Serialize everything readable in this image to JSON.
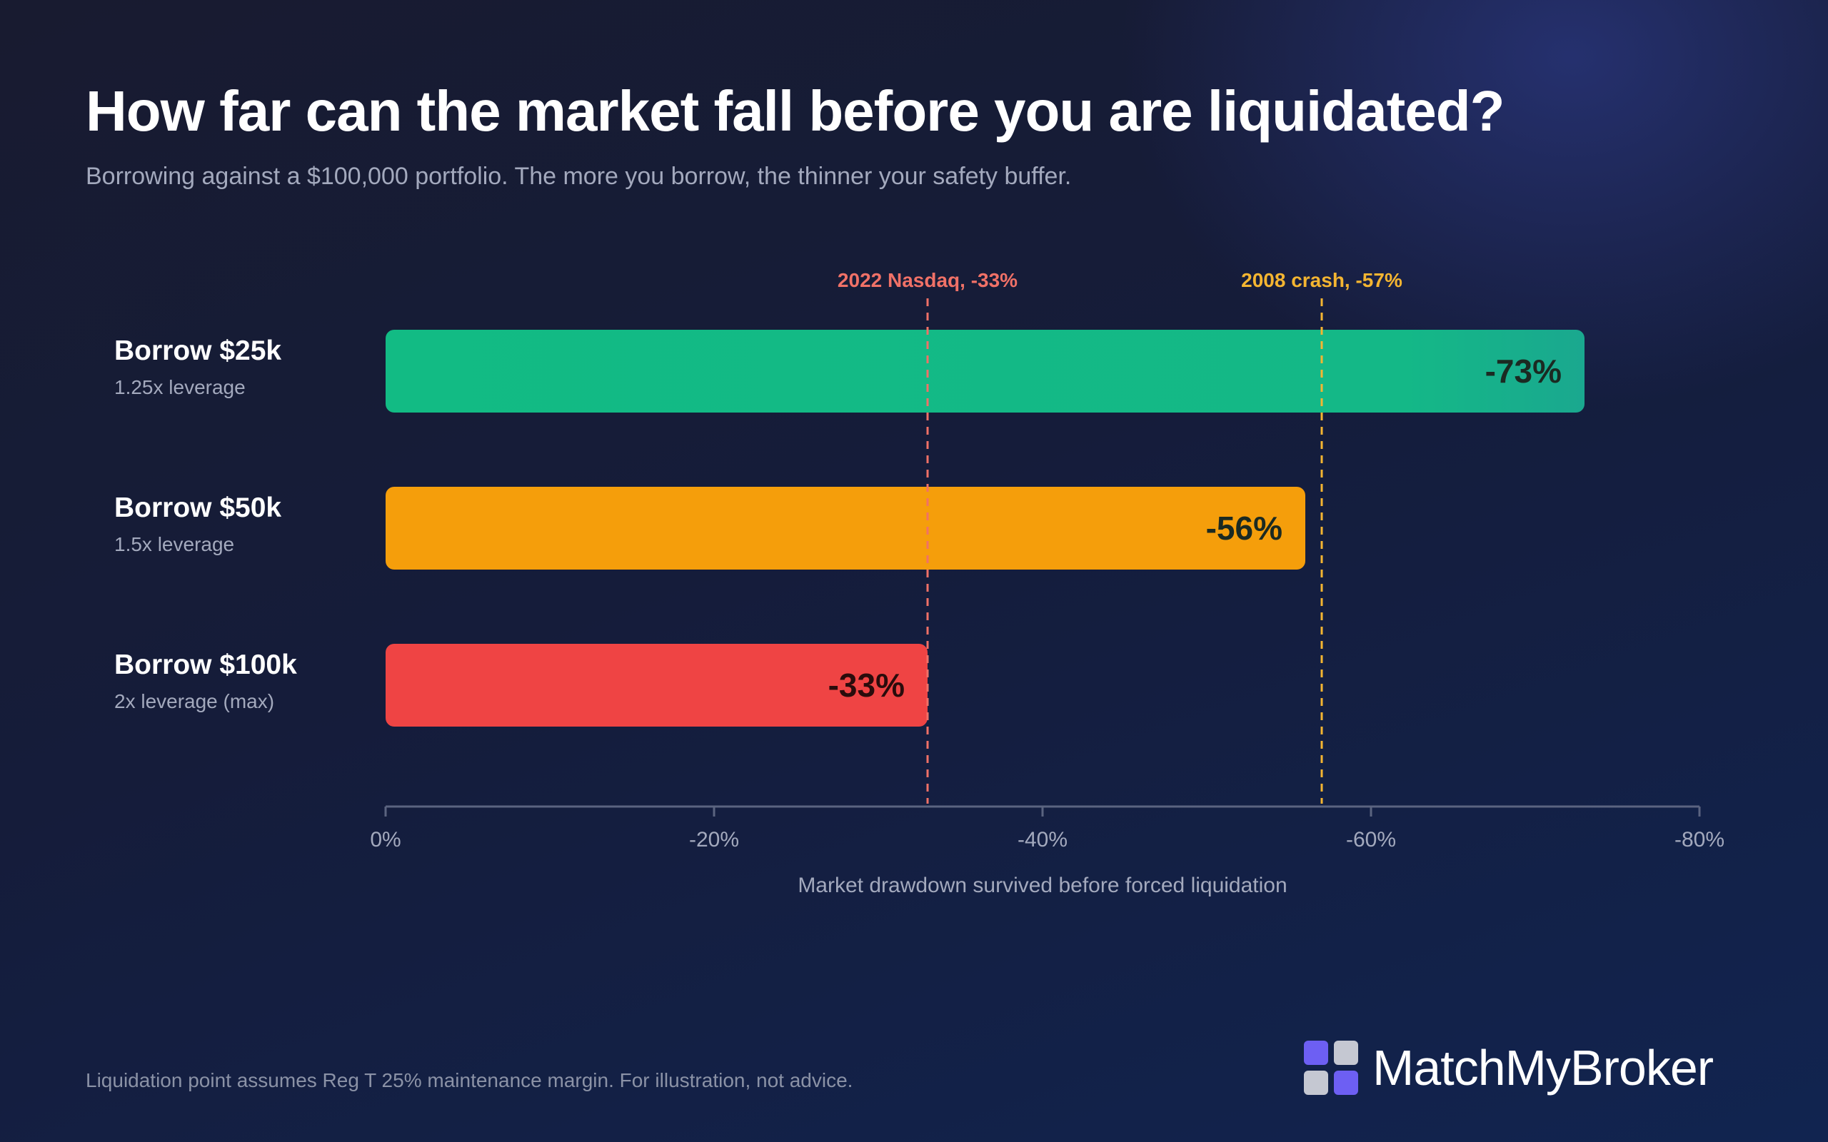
{
  "title": "How far can the market fall before you are liquidated?",
  "subtitle": "Borrowing against a $100,000 portfolio. The more you borrow, the thinner your safety buffer.",
  "footnote": "Liquidation point assumes Reg T 25% maintenance margin. For illustration, not advice.",
  "brand": {
    "name": "MatchMyBroker",
    "icon": "four-squares-logo-icon"
  },
  "colors": {
    "green": "#13b984",
    "orange": "#f59e0b",
    "red": "#ef4444",
    "nasdaq_line": "#f07167",
    "crash_line": "#f4b531",
    "axis": "#5b6480"
  },
  "chart_data": {
    "type": "bar",
    "orientation": "horizontal",
    "xlabel": "Market drawdown survived before forced liquidation",
    "xlim": [
      0,
      -80
    ],
    "xticks": [
      0,
      -20,
      -40,
      -60,
      -80
    ],
    "xtick_labels": [
      "0%",
      "-20%",
      "-40%",
      "-60%",
      "-80%"
    ],
    "grid": false,
    "categories": [
      {
        "label": "Borrow $25k",
        "sublabel": "1.25x leverage",
        "value": -73,
        "value_label": "-73%",
        "color": "#13b984"
      },
      {
        "label": "Borrow $50k",
        "sublabel": "1.5x leverage",
        "value": -56,
        "value_label": "-56%",
        "color": "#f59e0b"
      },
      {
        "label": "Borrow $100k",
        "sublabel": "2x leverage (max)",
        "value": -33,
        "value_label": "-33%",
        "color": "#ef4444"
      }
    ],
    "reference_lines": [
      {
        "label": "2022 Nasdaq, -33%",
        "value": -33,
        "color": "#f07167"
      },
      {
        "label": "2008 crash, -57%",
        "value": -57,
        "color": "#f4b531"
      }
    ]
  }
}
